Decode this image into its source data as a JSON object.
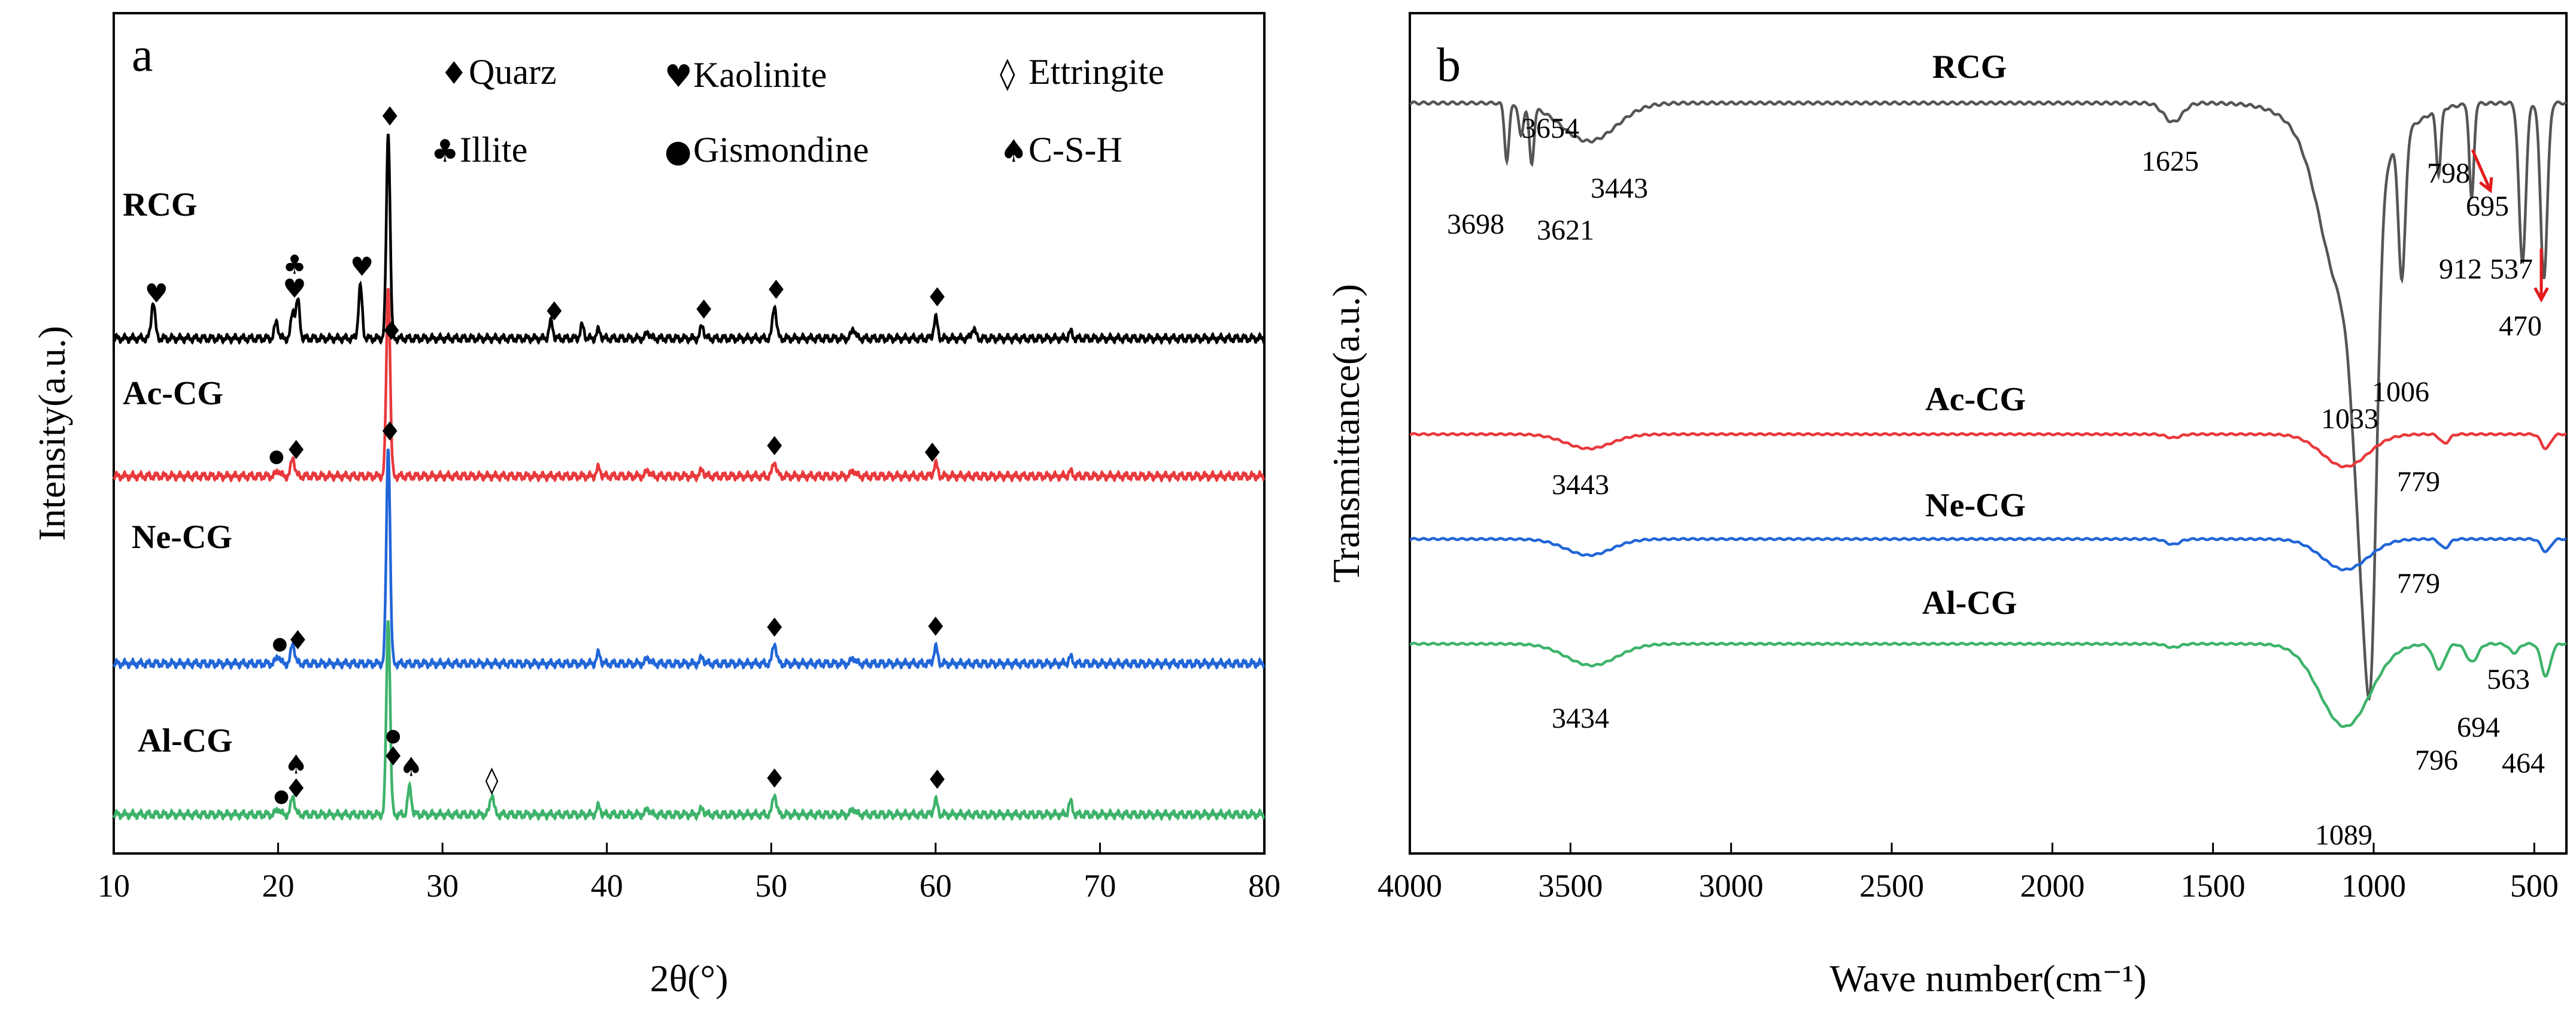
{
  "colors": {
    "RCG": "#000000",
    "Ac-CG": "#e8393c",
    "Ne-CG": "#2166d8",
    "Al-CG": "#3db36a",
    "RCG_ftir": "#555555",
    "arrow": "#e31a1c"
  },
  "legend": {
    "quarz": "Quarz",
    "kaolinite": "Kaolinite",
    "ettringite": "Ettringite",
    "illite": "Illite",
    "gismondine": "Gismondine",
    "csh": "C-S-H"
  },
  "chart_data": [
    {
      "type": "line",
      "panel": "a",
      "title": "",
      "xlabel": "2θ(°)",
      "ylabel": "Intensity(a.u.)",
      "xlim": [
        10,
        80
      ],
      "xticks": [
        "10",
        "20",
        "30",
        "40",
        "50",
        "60",
        "70",
        "80"
      ],
      "series": [
        {
          "name": "RCG",
          "label": "RCG",
          "offset": 3,
          "peaks": [
            [
              12.4,
              0.18
            ],
            [
              19.9,
              0.08
            ],
            [
              20.9,
              0.13
            ],
            [
              21.2,
              0.18
            ],
            [
              25.0,
              0.25
            ],
            [
              26.7,
              1.0
            ],
            [
              36.6,
              0.08
            ],
            [
              38.5,
              0.06
            ],
            [
              39.5,
              0.04
            ],
            [
              42.5,
              0.03
            ],
            [
              45.8,
              0.06
            ],
            [
              50.2,
              0.16
            ],
            [
              55.0,
              0.05
            ],
            [
              60.0,
              0.1
            ],
            [
              62.3,
              0.05
            ],
            [
              68.2,
              0.03
            ]
          ]
        },
        {
          "name": "Ac-CG",
          "label": "Ac-CG",
          "offset": 2,
          "peaks": [
            [
              20.0,
              0.03
            ],
            [
              20.9,
              0.09
            ],
            [
              26.7,
              0.92
            ],
            [
              39.5,
              0.04
            ],
            [
              42.5,
              0.03
            ],
            [
              45.8,
              0.03
            ],
            [
              50.2,
              0.07
            ],
            [
              55.0,
              0.03
            ],
            [
              60.0,
              0.06
            ],
            [
              68.2,
              0.02
            ]
          ]
        },
        {
          "name": "Ne-CG",
          "label": "Ne-CG",
          "offset": 1,
          "peaks": [
            [
              20.0,
              0.04
            ],
            [
              20.9,
              0.1
            ],
            [
              26.7,
              1.05
            ],
            [
              39.5,
              0.05
            ],
            [
              42.5,
              0.03
            ],
            [
              45.8,
              0.03
            ],
            [
              50.2,
              0.1
            ],
            [
              55.0,
              0.03
            ],
            [
              60.0,
              0.08
            ],
            [
              68.2,
              0.03
            ]
          ]
        },
        {
          "name": "Al-CG",
          "label": "Al-CG",
          "offset": 0,
          "peaks": [
            [
              20.0,
              0.03
            ],
            [
              20.9,
              0.09
            ],
            [
              26.7,
              0.95
            ],
            [
              28.0,
              0.13
            ],
            [
              33.0,
              0.1
            ],
            [
              39.5,
              0.04
            ],
            [
              42.5,
              0.03
            ],
            [
              45.8,
              0.03
            ],
            [
              50.2,
              0.1
            ],
            [
              55.0,
              0.03
            ],
            [
              60.0,
              0.07
            ],
            [
              68.2,
              0.06
            ]
          ]
        }
      ],
      "markers": [
        {
          "series": "RCG",
          "x": 12.6,
          "symbols": [
            "kaolinite"
          ]
        },
        {
          "series": "RCG",
          "x": 21.0,
          "symbols": [
            "kaolinite",
            "illite"
          ]
        },
        {
          "series": "RCG",
          "x": 25.1,
          "symbols": [
            "kaolinite"
          ]
        },
        {
          "series": "RCG",
          "x": 26.8,
          "symbols": [
            "quarz"
          ]
        },
        {
          "series": "RCG",
          "x": 36.8,
          "symbols": [
            "quarz"
          ]
        },
        {
          "series": "RCG",
          "x": 45.9,
          "symbols": [
            "quarz"
          ]
        },
        {
          "series": "RCG",
          "x": 50.3,
          "symbols": [
            "quarz"
          ]
        },
        {
          "series": "RCG",
          "x": 60.1,
          "symbols": [
            "quarz"
          ]
        },
        {
          "series": "Ac-CG",
          "x": 19.9,
          "symbols": [
            "gismondine"
          ]
        },
        {
          "series": "Ac-CG",
          "x": 21.1,
          "symbols": [
            "quarz"
          ]
        },
        {
          "series": "Ac-CG",
          "x": 26.9,
          "symbols": [
            "quarz"
          ]
        },
        {
          "series": "Ac-CG",
          "x": 50.2,
          "symbols": [
            "quarz"
          ]
        },
        {
          "series": "Ac-CG",
          "x": 59.8,
          "symbols": [
            "quarz"
          ]
        },
        {
          "series": "Ne-CG",
          "x": 20.1,
          "symbols": [
            "gismondine"
          ]
        },
        {
          "series": "Ne-CG",
          "x": 21.2,
          "symbols": [
            "quarz"
          ]
        },
        {
          "series": "Ne-CG",
          "x": 26.8,
          "symbols": [
            "quarz"
          ]
        },
        {
          "series": "Ne-CG",
          "x": 50.2,
          "symbols": [
            "quarz"
          ]
        },
        {
          "series": "Ne-CG",
          "x": 60.0,
          "symbols": [
            "quarz"
          ]
        },
        {
          "series": "Al-CG",
          "x": 20.2,
          "symbols": [
            "gismondine"
          ]
        },
        {
          "series": "Al-CG",
          "x": 21.1,
          "symbols": [
            "quarz",
            "csh"
          ]
        },
        {
          "series": "Al-CG",
          "x": 27.0,
          "symbols": [
            "quarz",
            "gismondine"
          ]
        },
        {
          "series": "Al-CG",
          "x": 28.1,
          "symbols": [
            "csh"
          ]
        },
        {
          "series": "Al-CG",
          "x": 33.0,
          "symbols": [
            "ettringite"
          ]
        },
        {
          "series": "Al-CG",
          "x": 50.2,
          "symbols": [
            "quarz"
          ]
        },
        {
          "series": "Al-CG",
          "x": 60.1,
          "symbols": [
            "quarz"
          ]
        }
      ]
    },
    {
      "type": "line",
      "panel": "b",
      "title": "",
      "xlabel": "Wave number(cm⁻¹)",
      "ylabel": "Transmittance(a.u.)",
      "xlim": [
        4000,
        400
      ],
      "xticks": [
        "4000",
        "3500",
        "3000",
        "2500",
        "2000",
        "1500",
        "1000",
        "500"
      ],
      "series": [
        {
          "name": "RCG",
          "label": "RCG",
          "offset": 3,
          "bands": [
            [
              3698,
              -0.18,
              10
            ],
            [
              3654,
              -0.1,
              10
            ],
            [
              3621,
              -0.18,
              10
            ],
            [
              3443,
              -0.12,
              120
            ],
            [
              1625,
              -0.06,
              40
            ],
            [
              1033,
              -0.95,
              40
            ],
            [
              1006,
              -0.85,
              25
            ],
            [
              912,
              -0.45,
              15
            ],
            [
              798,
              -0.2,
              10
            ],
            [
              695,
              -0.3,
              10
            ],
            [
              537,
              -0.5,
              15
            ],
            [
              470,
              -0.55,
              15
            ],
            [
              1100,
              -0.4,
              90
            ]
          ]
        },
        {
          "name": "Ac-CG",
          "label": "Ac-CG",
          "offset": 2,
          "bands": [
            [
              3443,
              -0.08,
              100
            ],
            [
              1625,
              -0.02,
              30
            ],
            [
              1089,
              -0.18,
              100
            ],
            [
              779,
              -0.05,
              20
            ],
            [
              464,
              -0.08,
              20
            ]
          ]
        },
        {
          "name": "Ne-CG",
          "label": "Ne-CG",
          "offset": 1,
          "bands": [
            [
              3443,
              -0.09,
              100
            ],
            [
              1625,
              -0.03,
              30
            ],
            [
              1089,
              -0.17,
              100
            ],
            [
              779,
              -0.05,
              20
            ],
            [
              464,
              -0.07,
              20
            ]
          ]
        },
        {
          "name": "Al-CG",
          "label": "Al-CG",
          "offset": 0,
          "bands": [
            [
              3434,
              -0.12,
              110
            ],
            [
              1625,
              -0.02,
              30
            ],
            [
              1089,
              -0.46,
              110
            ],
            [
              796,
              -0.14,
              25
            ],
            [
              694,
              -0.1,
              25
            ],
            [
              563,
              -0.05,
              20
            ],
            [
              464,
              -0.18,
              20
            ]
          ]
        }
      ],
      "annotations": [
        {
          "series": "RCG",
          "label": "3698"
        },
        {
          "series": "RCG",
          "label": "3654"
        },
        {
          "series": "RCG",
          "label": "3621"
        },
        {
          "series": "RCG",
          "label": "3443"
        },
        {
          "series": "RCG",
          "label": "1625"
        },
        {
          "series": "RCG",
          "label": "1033"
        },
        {
          "series": "RCG",
          "label": "1006"
        },
        {
          "series": "RCG",
          "label": "912"
        },
        {
          "series": "RCG",
          "label": "798"
        },
        {
          "series": "RCG",
          "label": "695"
        },
        {
          "series": "RCG",
          "label": "537"
        },
        {
          "series": "RCG",
          "label": "470"
        },
        {
          "series": "Ac-CG",
          "label": "3443"
        },
        {
          "series": "Ac-CG",
          "label": "779"
        },
        {
          "series": "Ne-CG",
          "label": "779"
        },
        {
          "series": "Al-CG",
          "label": "3434"
        },
        {
          "series": "Al-CG",
          "label": "1089"
        },
        {
          "series": "Al-CG",
          "label": "796"
        },
        {
          "series": "Al-CG",
          "label": "694"
        },
        {
          "series": "Al-CG",
          "label": "563"
        },
        {
          "series": "Al-CG",
          "label": "464"
        }
      ]
    }
  ],
  "panels": {
    "a": "a",
    "b": "b"
  }
}
